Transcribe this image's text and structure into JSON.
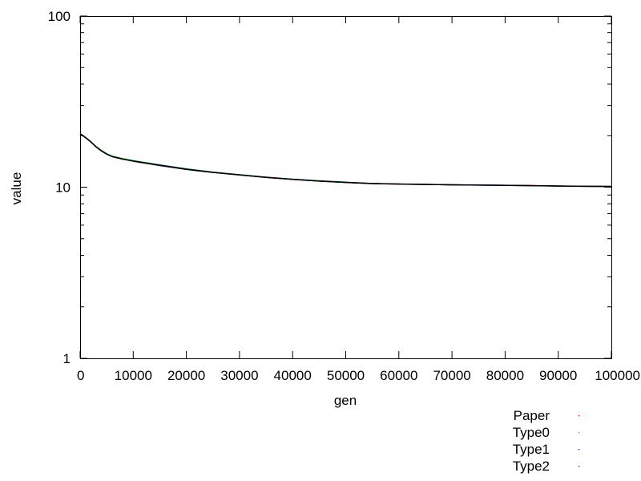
{
  "chart_data": {
    "type": "line",
    "title": "",
    "xlabel": "gen",
    "ylabel": "value",
    "xlim": [
      0,
      100000
    ],
    "ylim": [
      1,
      100
    ],
    "yscale": "log",
    "grid": false,
    "legend_position": "bottom-right",
    "x_ticks": [
      0,
      10000,
      20000,
      30000,
      40000,
      50000,
      60000,
      70000,
      80000,
      90000,
      100000
    ],
    "x_tick_labels": [
      "0",
      "10000",
      "20000",
      "30000",
      "40000",
      "50000",
      "60000",
      "70000",
      "80000",
      "90000",
      "100000"
    ],
    "y_ticks": [
      1,
      10,
      100
    ],
    "y_tick_labels": [
      "1",
      "10",
      "100"
    ],
    "y_minor_ticks": [
      2,
      3,
      4,
      5,
      6,
      7,
      8,
      9,
      20,
      30,
      40,
      50,
      60,
      70,
      80,
      90
    ],
    "legend": [
      "Paper",
      "Type0",
      "Type1",
      "Type2"
    ],
    "series": [
      {
        "name": "Paper",
        "color": "#ff0000",
        "x": [
          0,
          1000,
          2000,
          3000,
          4000,
          5000,
          6000,
          8000,
          10000,
          15000,
          20000,
          25000,
          30000,
          35000,
          40000,
          45000,
          50000,
          55000,
          60000,
          65000,
          70000,
          75000,
          80000,
          85000,
          90000,
          95000,
          100000
        ],
        "y": [
          20.5,
          19.5,
          18.4,
          17.2,
          16.3,
          15.6,
          15.1,
          14.6,
          14.2,
          13.4,
          12.7,
          12.2,
          11.8,
          11.4,
          11.1,
          10.85,
          10.65,
          10.5,
          10.42,
          10.38,
          10.32,
          10.28,
          10.25,
          10.22,
          10.15,
          10.12,
          10.1
        ]
      },
      {
        "name": "Type0",
        "color": "#00aa00",
        "x": [
          0,
          1000,
          2000,
          3000,
          4000,
          5000,
          6000,
          8000,
          10000,
          15000,
          20000,
          25000,
          30000,
          35000,
          40000,
          45000,
          50000,
          55000,
          60000,
          65000,
          70000,
          75000,
          80000,
          85000,
          90000,
          95000,
          100000
        ],
        "y": [
          20.6,
          19.6,
          18.5,
          17.3,
          16.4,
          15.7,
          15.2,
          14.7,
          14.3,
          13.5,
          12.8,
          12.25,
          11.85,
          11.45,
          11.15,
          10.9,
          10.7,
          10.52,
          10.45,
          10.38,
          10.33,
          10.29,
          10.25,
          10.2,
          10.14,
          10.12,
          10.1
        ]
      },
      {
        "name": "Type1",
        "color": "#0000aa",
        "x": [
          0,
          1000,
          2000,
          3000,
          4000,
          5000,
          6000,
          8000,
          10000,
          15000,
          20000,
          25000,
          30000,
          35000,
          40000,
          45000,
          50000,
          55000,
          60000,
          65000,
          70000,
          75000,
          80000,
          85000,
          90000,
          95000,
          100000
        ],
        "y": [
          20.5,
          19.5,
          18.4,
          17.2,
          16.3,
          15.6,
          15.1,
          14.6,
          14.2,
          13.45,
          12.75,
          12.2,
          11.8,
          11.42,
          11.12,
          10.87,
          10.67,
          10.51,
          10.43,
          10.37,
          10.33,
          10.29,
          10.26,
          10.21,
          10.16,
          10.13,
          10.1
        ]
      },
      {
        "name": "Type2",
        "color": "#000000",
        "x": [
          0,
          1000,
          2000,
          3000,
          4000,
          5000,
          6000,
          8000,
          10000,
          15000,
          20000,
          25000,
          30000,
          35000,
          40000,
          45000,
          50000,
          55000,
          60000,
          65000,
          70000,
          75000,
          80000,
          85000,
          90000,
          95000,
          100000
        ],
        "y": [
          20.5,
          19.5,
          18.4,
          17.2,
          16.3,
          15.6,
          15.1,
          14.6,
          14.2,
          13.4,
          12.7,
          12.2,
          11.8,
          11.42,
          11.12,
          10.86,
          10.66,
          10.5,
          10.43,
          10.37,
          10.32,
          10.28,
          10.25,
          10.21,
          10.15,
          10.12,
          10.1
        ]
      }
    ]
  }
}
